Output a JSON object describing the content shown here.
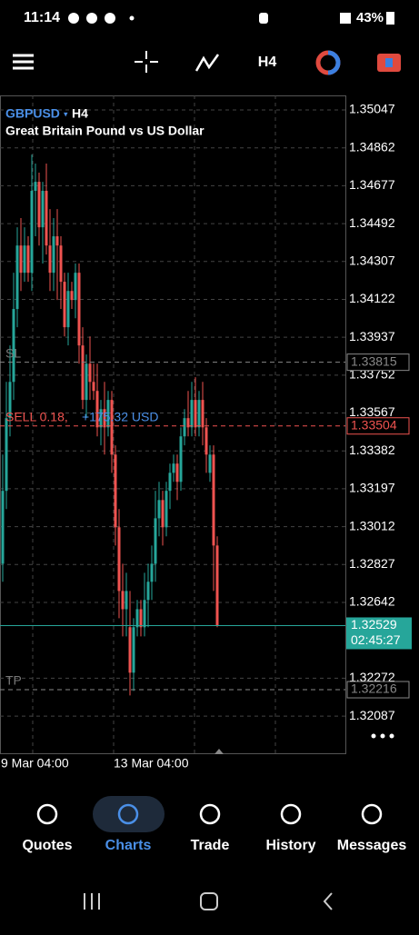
{
  "status_bar": {
    "time": "11:14",
    "battery": "43%"
  },
  "toolbar": {
    "timeframe": "H4"
  },
  "chart": {
    "symbol": "GBPUSD",
    "timeframe": "H4",
    "description": "Great Britain Pound vs US Dollar",
    "ylim": [
      1.31901,
      1.35118
    ],
    "yticks": [
      1.35047,
      1.34862,
      1.34677,
      1.34492,
      1.34307,
      1.34122,
      1.33937,
      1.33752,
      1.33567,
      1.33382,
      1.33197,
      1.33012,
      1.32827,
      1.32642,
      1.32272,
      1.32087
    ],
    "up_color": "#26a69a",
    "down_color": "#ef5350",
    "x_labels": [
      {
        "index": 0,
        "label": "9 Mar 04:00"
      },
      {
        "index": 31,
        "label": "13 Mar 04:00"
      }
    ],
    "candles": [
      [
        1.32831,
        1.33364,
        1.32743,
        1.33187
      ],
      [
        1.33187,
        1.33719,
        1.33098,
        1.33542
      ],
      [
        1.33542,
        1.33897,
        1.33453,
        1.33719
      ],
      [
        1.33719,
        1.34252,
        1.33631,
        1.34075
      ],
      [
        1.34075,
        1.34474,
        1.33986,
        1.34385
      ],
      [
        1.34385,
        1.34519,
        1.34163,
        1.34252
      ],
      [
        1.34252,
        1.34474,
        1.34208,
        1.34385
      ],
      [
        1.34385,
        1.3443,
        1.34208,
        1.34252
      ],
      [
        1.34252,
        1.34829,
        1.34163,
        1.34652
      ],
      [
        1.34652,
        1.34785,
        1.3443,
        1.34696
      ],
      [
        1.34696,
        1.34741,
        1.34385,
        1.34474
      ],
      [
        1.34474,
        1.34696,
        1.34297,
        1.34652
      ],
      [
        1.34652,
        1.34785,
        1.34341,
        1.34385
      ],
      [
        1.34385,
        1.34563,
        1.34163,
        1.34252
      ],
      [
        1.34252,
        1.34519,
        1.34163,
        1.3443
      ],
      [
        1.3443,
        1.34563,
        1.34119,
        1.34385
      ],
      [
        1.34385,
        1.3443,
        1.34075,
        1.34208
      ],
      [
        1.34208,
        1.34252,
        1.33941,
        1.33986
      ],
      [
        1.33986,
        1.34252,
        1.33897,
        1.34163
      ],
      [
        1.34163,
        1.34208,
        1.34075,
        1.34119
      ],
      [
        1.34119,
        1.34297,
        1.3403,
        1.34252
      ],
      [
        1.34252,
        1.34297,
        1.33808,
        1.33897
      ],
      [
        1.33897,
        1.33986,
        1.33586,
        1.33631
      ],
      [
        1.33631,
        1.33853,
        1.33542,
        1.33808
      ],
      [
        1.33808,
        1.33941,
        1.33631,
        1.33719
      ],
      [
        1.33719,
        1.33808,
        1.33631,
        1.33675
      ],
      [
        1.33675,
        1.33808,
        1.33453,
        1.33497
      ],
      [
        1.33497,
        1.33631,
        1.33409,
        1.33586
      ],
      [
        1.33586,
        1.33719,
        1.33364,
        1.33497
      ],
      [
        1.33497,
        1.33675,
        1.33453,
        1.33631
      ],
      [
        1.33631,
        1.33675,
        1.33275,
        1.33364
      ],
      [
        1.33364,
        1.33409,
        1.3292,
        1.33009
      ],
      [
        1.33009,
        1.33098,
        1.32565,
        1.32698
      ],
      [
        1.32698,
        1.32831,
        1.32476,
        1.32609
      ],
      [
        1.32609,
        1.32787,
        1.32476,
        1.32698
      ],
      [
        1.32521,
        1.32698,
        1.32188,
        1.32299
      ],
      [
        1.32299,
        1.32565,
        1.3221,
        1.32521
      ],
      [
        1.32521,
        1.32654,
        1.32476,
        1.32609
      ],
      [
        1.32609,
        1.32654,
        1.32476,
        1.32521
      ],
      [
        1.32521,
        1.32787,
        1.32476,
        1.32654
      ],
      [
        1.32654,
        1.32831,
        1.32521,
        1.32743
      ],
      [
        1.32743,
        1.3292,
        1.32654,
        1.32831
      ],
      [
        1.32831,
        1.33187,
        1.32743,
        1.33053
      ],
      [
        1.33053,
        1.33231,
        1.32965,
        1.33142
      ],
      [
        1.33142,
        1.33187,
        1.3292,
        1.33009
      ],
      [
        1.33009,
        1.33231,
        1.32965,
        1.33187
      ],
      [
        1.33187,
        1.3332,
        1.33098,
        1.33275
      ],
      [
        1.33275,
        1.33364,
        1.33231,
        1.3332
      ],
      [
        1.3332,
        1.33364,
        1.33142,
        1.33231
      ],
      [
        1.33231,
        1.33497,
        1.33187,
        1.33453
      ],
      [
        1.33453,
        1.33586,
        1.33409,
        1.33542
      ],
      [
        1.33542,
        1.33675,
        1.33453,
        1.33497
      ],
      [
        1.33497,
        1.33719,
        1.33453,
        1.33631
      ],
      [
        1.33631,
        1.33742,
        1.33453,
        1.33497
      ],
      [
        1.33497,
        1.33675,
        1.33453,
        1.33631
      ],
      [
        1.33631,
        1.33719,
        1.33409,
        1.33497
      ],
      [
        1.33497,
        1.33542,
        1.33275,
        1.33364
      ],
      [
        1.33275,
        1.33409,
        1.33231,
        1.33364
      ],
      [
        1.33364,
        1.33409,
        1.32698,
        1.3292
      ],
      [
        1.3292,
        1.32965,
        1.32521,
        1.32529
      ]
    ],
    "levels": {
      "sl": {
        "label": "SL",
        "value": 1.33815
      },
      "order": {
        "label": "SELL 0.18,",
        "profit": "+175.32 USD",
        "value": 1.33504
      },
      "current": {
        "value": 1.32529,
        "countdown": "02:45:27"
      },
      "tp": {
        "label": "TP",
        "value": 1.32216
      }
    }
  },
  "nav": {
    "items": [
      "Quotes",
      "Charts",
      "Trade",
      "History",
      "Messages"
    ],
    "active": 1
  }
}
